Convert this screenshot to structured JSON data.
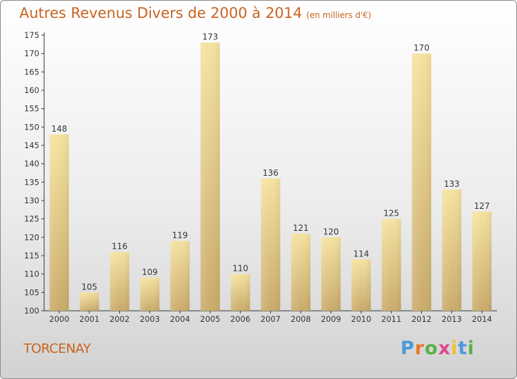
{
  "chart_data": {
    "type": "bar",
    "title": "Autres Revenus Divers de 2000 à 2014",
    "subtitle": "(en milliers d'€)",
    "categories": [
      "2000",
      "2001",
      "2002",
      "2003",
      "2004",
      "2005",
      "2006",
      "2007",
      "2008",
      "2009",
      "2010",
      "2011",
      "2012",
      "2013",
      "2014"
    ],
    "values": [
      148,
      105,
      116,
      109,
      119,
      173,
      110,
      136,
      121,
      120,
      114,
      125,
      170,
      133,
      127
    ],
    "ylim": [
      100,
      175
    ],
    "yticks": [
      100,
      105,
      110,
      115,
      120,
      125,
      130,
      135,
      140,
      145,
      150,
      155,
      160,
      165,
      170,
      175
    ],
    "grid": false,
    "data_labels": true,
    "colors": {
      "bar_light": "#f5e2a0",
      "bar_dark": "#c9ab6b",
      "text": "#c8631f"
    }
  },
  "place_name": "TORCENAY",
  "logo": {
    "text": "Proxiti",
    "letter_colors": [
      "#4a9ad8",
      "#e8792a",
      "#5ab04a",
      "#e04a8a",
      "#f0c030",
      "#4a9ad8",
      "#5ab04a"
    ]
  }
}
